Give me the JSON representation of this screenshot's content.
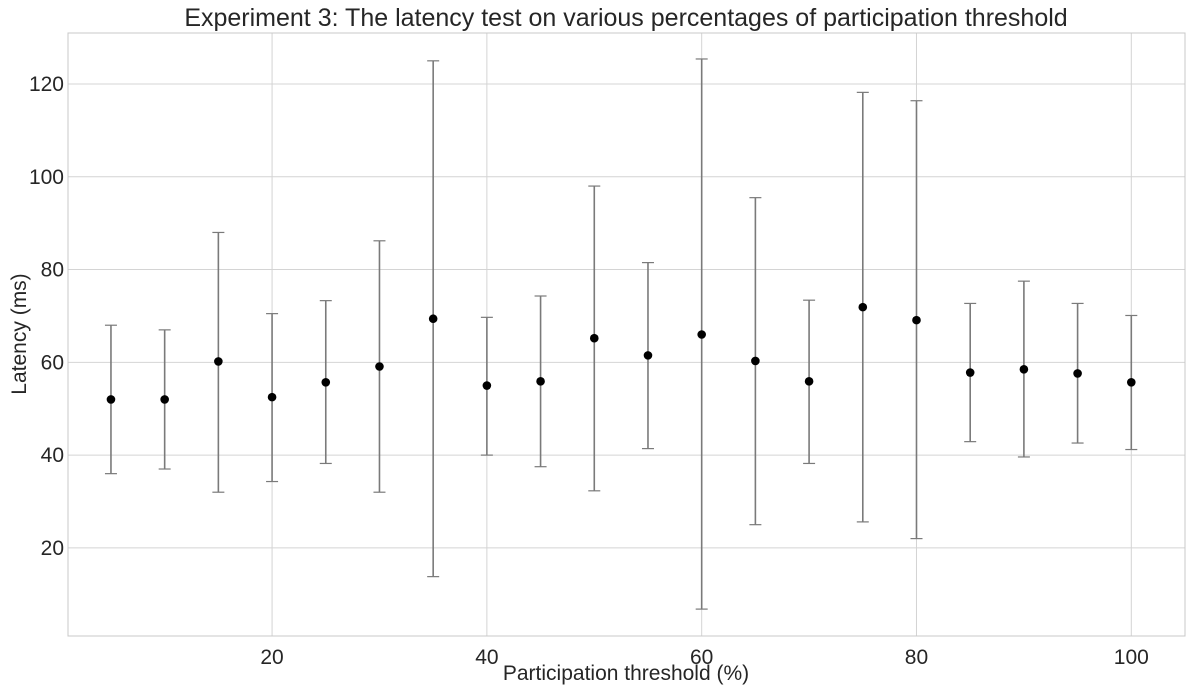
{
  "chart_data": {
    "type": "scatter",
    "title": "Experiment 3: The latency test on various percentages of participation threshold",
    "xlabel": "Participation threshold (%)",
    "ylabel": "Latency (ms)",
    "xlim": [
      1,
      105
    ],
    "ylim": [
      1,
      131
    ],
    "xticks": [
      20,
      40,
      60,
      80,
      100
    ],
    "yticks": [
      20,
      40,
      60,
      80,
      100,
      120
    ],
    "grid": true,
    "marker_color": "#000000",
    "errorbar_color": "#7a7a7a",
    "points": [
      {
        "x": 5,
        "y": 52.0,
        "lower": 36.0,
        "upper": 68.0
      },
      {
        "x": 10,
        "y": 52.0,
        "lower": 37.0,
        "upper": 67.0
      },
      {
        "x": 15,
        "y": 60.2,
        "lower": 32.0,
        "upper": 88.0
      },
      {
        "x": 20,
        "y": 52.5,
        "lower": 34.3,
        "upper": 70.5
      },
      {
        "x": 25,
        "y": 55.7,
        "lower": 38.2,
        "upper": 73.3
      },
      {
        "x": 30,
        "y": 59.1,
        "lower": 32.0,
        "upper": 86.2
      },
      {
        "x": 35,
        "y": 69.4,
        "lower": 13.8,
        "upper": 125.0
      },
      {
        "x": 40,
        "y": 55.0,
        "lower": 40.0,
        "upper": 69.7
      },
      {
        "x": 45,
        "y": 55.9,
        "lower": 37.5,
        "upper": 74.3
      },
      {
        "x": 50,
        "y": 65.2,
        "lower": 32.3,
        "upper": 98.0
      },
      {
        "x": 55,
        "y": 61.5,
        "lower": 41.4,
        "upper": 81.5
      },
      {
        "x": 60,
        "y": 66.0,
        "lower": 6.8,
        "upper": 125.4
      },
      {
        "x": 65,
        "y": 60.3,
        "lower": 25.0,
        "upper": 95.5
      },
      {
        "x": 70,
        "y": 55.9,
        "lower": 38.2,
        "upper": 73.4
      },
      {
        "x": 75,
        "y": 71.9,
        "lower": 25.6,
        "upper": 118.2
      },
      {
        "x": 80,
        "y": 69.1,
        "lower": 22.0,
        "upper": 116.4
      },
      {
        "x": 85,
        "y": 57.8,
        "lower": 42.9,
        "upper": 72.7
      },
      {
        "x": 90,
        "y": 58.5,
        "lower": 39.6,
        "upper": 77.5
      },
      {
        "x": 95,
        "y": 57.6,
        "lower": 42.6,
        "upper": 72.7
      },
      {
        "x": 100,
        "y": 55.7,
        "lower": 41.2,
        "upper": 70.1
      }
    ]
  }
}
